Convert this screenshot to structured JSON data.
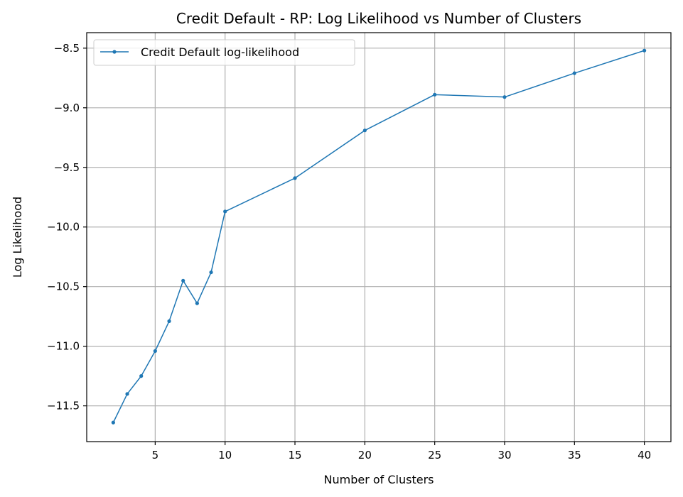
{
  "chart_data": {
    "type": "line",
    "title": "Credit Default - RP: Log Likelihood vs Number of Clusters",
    "xlabel": "Number of Clusters",
    "ylabel": "Log Likelihood",
    "xlim": [
      0.1,
      41.9
    ],
    "ylim": [
      -11.8,
      -8.37
    ],
    "x_ticks": [
      5,
      10,
      15,
      20,
      25,
      30,
      35,
      40
    ],
    "x_tick_labels": [
      "5",
      "10",
      "15",
      "20",
      "25",
      "30",
      "35",
      "40"
    ],
    "y_ticks": [
      -11.5,
      -11.0,
      -10.5,
      -10.0,
      -9.5,
      -9.0,
      -8.5
    ],
    "y_tick_labels": [
      "−11.5",
      "−11.0",
      "−10.5",
      "−10.0",
      "−9.5",
      "−9.0",
      "−8.5"
    ],
    "grid": true,
    "legend_position": "top-left",
    "series": [
      {
        "name": "Credit Default log-likelihood",
        "color": "#1f77b4",
        "x": [
          2,
          3,
          4,
          5,
          6,
          7,
          8,
          9,
          10,
          15,
          20,
          25,
          30,
          35,
          40
        ],
        "y": [
          -11.64,
          -11.4,
          -11.25,
          -11.04,
          -10.79,
          -10.45,
          -10.64,
          -10.38,
          -9.87,
          -9.59,
          -9.19,
          -8.89,
          -8.91,
          -8.71,
          -8.52
        ]
      }
    ]
  }
}
